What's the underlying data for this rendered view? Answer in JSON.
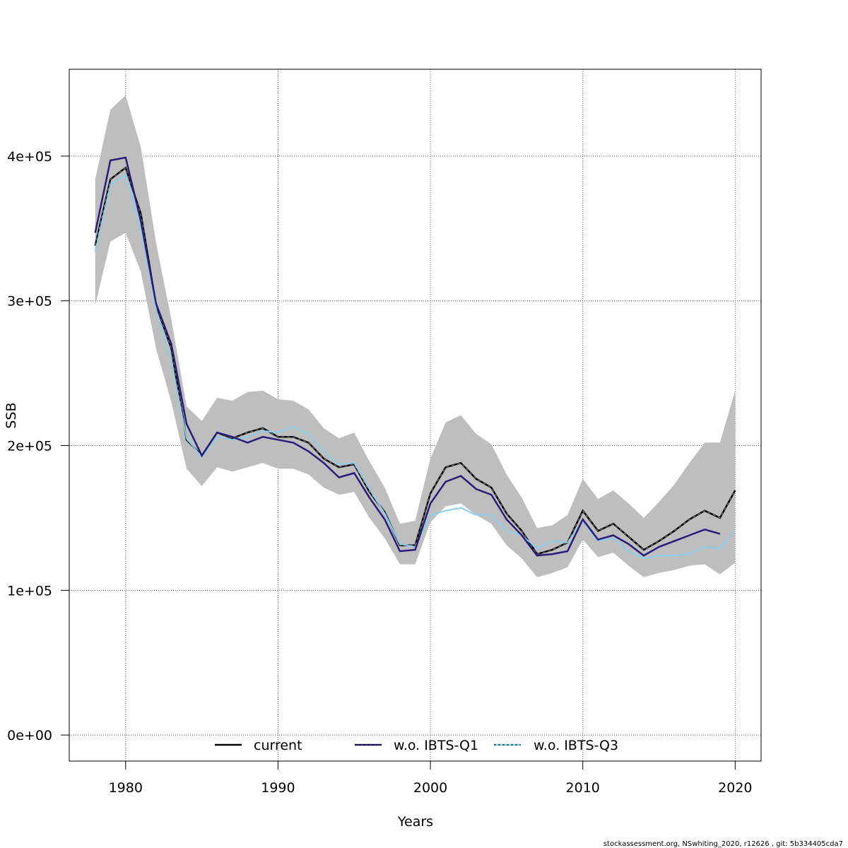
{
  "chart_data": {
    "type": "line",
    "title": "",
    "xlabel": "Years",
    "ylabel": "SSB",
    "xlim": [
      1976.3,
      2021.7
    ],
    "ylim": [
      -18000,
      460000
    ],
    "x_ticks": [
      1980,
      1990,
      2000,
      2010,
      2020
    ],
    "x_tick_labels": [
      "1980",
      "1990",
      "2000",
      "2010",
      "2020"
    ],
    "y_ticks": [
      0,
      100000,
      200000,
      300000,
      400000
    ],
    "y_tick_labels": [
      "0e+00",
      "1e+05",
      "2e+05",
      "3e+05",
      "4e+05"
    ],
    "grid": true,
    "legend_position": "bottom",
    "x": [
      1978,
      1979,
      1980,
      1981,
      1982,
      1983,
      1984,
      1985,
      1986,
      1987,
      1988,
      1989,
      1990,
      1991,
      1992,
      1993,
      1994,
      1995,
      1996,
      1997,
      1998,
      1999,
      2000,
      2001,
      2002,
      2003,
      2004,
      2005,
      2006,
      2007,
      2008,
      2009,
      2010,
      2011,
      2012,
      2013,
      2014,
      2015,
      2016,
      2017,
      2018,
      2019,
      2020
    ],
    "band": {
      "lower": [
        297000,
        341000,
        347000,
        320000,
        267000,
        230000,
        184000,
        172000,
        185000,
        182000,
        185000,
        188000,
        184000,
        184000,
        180000,
        171000,
        166000,
        168000,
        150000,
        136000,
        118000,
        118000,
        147000,
        158000,
        160000,
        152000,
        146000,
        131000,
        122000,
        109000,
        112000,
        116000,
        135000,
        123000,
        126000,
        117000,
        109000,
        112000,
        114000,
        117000,
        118000,
        111000,
        119000
      ],
      "upper": [
        384000,
        432000,
        442000,
        406000,
        340000,
        287000,
        227000,
        217000,
        233000,
        231000,
        237000,
        238000,
        232000,
        231000,
        225000,
        212000,
        205000,
        209000,
        189000,
        171000,
        146000,
        148000,
        191000,
        216000,
        221000,
        208000,
        201000,
        180000,
        164000,
        143000,
        145000,
        152000,
        177000,
        163000,
        169000,
        160000,
        150000,
        161000,
        173000,
        188000,
        202000,
        202000,
        238000
      ]
    },
    "series": [
      {
        "name": "current",
        "color": "#000000",
        "style": "solid-dashed",
        "values": [
          338000,
          384000,
          392000,
          360000,
          297000,
          267000,
          204000,
          193000,
          209000,
          205000,
          209000,
          212000,
          206000,
          206000,
          202000,
          191000,
          185000,
          187000,
          168000,
          154000,
          131000,
          131000,
          167000,
          185000,
          188000,
          177000,
          171000,
          153000,
          141000,
          125000,
          128000,
          133000,
          155000,
          141000,
          146000,
          137000,
          128000,
          134000,
          141000,
          149000,
          155000,
          150000,
          169000
        ]
      },
      {
        "name": "w.o. IBTS-Q1",
        "color": "#2b1b7a",
        "style": "solid",
        "values": [
          347000,
          397000,
          399000,
          355000,
          298000,
          270000,
          215000,
          193000,
          209000,
          206000,
          202000,
          206000,
          204000,
          202000,
          196000,
          188000,
          178000,
          181000,
          164000,
          149000,
          127000,
          128000,
          160000,
          175000,
          179000,
          170000,
          166000,
          149000,
          138000,
          124000,
          125000,
          127000,
          149000,
          135000,
          138000,
          132000,
          124000,
          130000,
          134000,
          138000,
          142000,
          139000,
          null
        ]
      },
      {
        "name": "w.o. IBTS-Q3",
        "color": "#87ceeb",
        "style": "solid",
        "values": [
          334000,
          380000,
          387000,
          350000,
          294000,
          258000,
          205000,
          192000,
          206000,
          204000,
          206000,
          210000,
          209000,
          213000,
          208000,
          196000,
          187000,
          188000,
          170000,
          153000,
          132000,
          130000,
          152000,
          155000,
          157000,
          152000,
          152000,
          141000,
          138000,
          129000,
          134000,
          133000,
          148000,
          134000,
          136000,
          127000,
          122000,
          124000,
          124000,
          125000,
          130000,
          129000,
          141000
        ]
      }
    ],
    "footer": "stockassessment.org, NSwhiting_2020, r12626 , git: 5b334405cda7"
  },
  "legend": {
    "items": [
      "current",
      "w.o. IBTS-Q1",
      "w.o. IBTS-Q3"
    ]
  },
  "colors": {
    "band": "#bebebe",
    "grid": "#555555"
  }
}
